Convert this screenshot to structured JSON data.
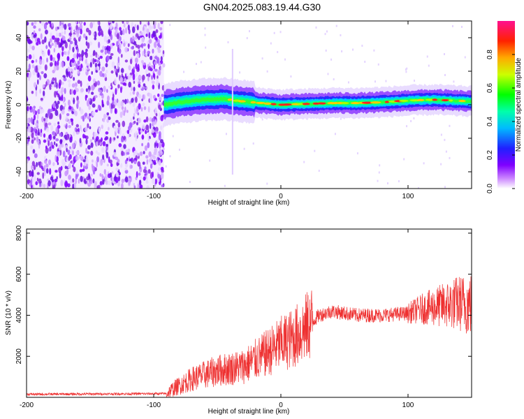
{
  "title": "GN04.2025.083.19.44.G30",
  "chart_data": [
    {
      "type": "heatmap",
      "xlabel": "Height of straight line (km)",
      "ylabel": "Frequency (Hz)",
      "xlim": [
        -200,
        150
      ],
      "ylim": [
        -50,
        50
      ],
      "xticks": [
        -200,
        -100,
        0,
        100
      ],
      "yticks": [
        -40,
        -20,
        0,
        20,
        40
      ],
      "noise_region_x": [
        -200,
        -92
      ],
      "ridge": [
        [
          -92,
          0
        ],
        [
          -80,
          1.5
        ],
        [
          -60,
          3
        ],
        [
          -45,
          3.5
        ],
        [
          -30,
          2
        ],
        [
          -15,
          1
        ],
        [
          0,
          0
        ],
        [
          20,
          0.5
        ],
        [
          40,
          1
        ],
        [
          60,
          1
        ],
        [
          80,
          1.5
        ],
        [
          100,
          2.5
        ],
        [
          120,
          3
        ],
        [
          150,
          2
        ]
      ],
      "colorbar": {
        "label": "Normalized spectral amplitude",
        "range": [
          0,
          1
        ],
        "ticks": [
          "0.0",
          "0.2",
          "0.4",
          "0.6",
          "0.8"
        ]
      }
    },
    {
      "type": "line",
      "xlabel": "Height of straight line (km)",
      "ylabel": "SNR (10 * v/v)",
      "xlim": [
        -200,
        150
      ],
      "ylim": [
        0,
        8200
      ],
      "xticks": [
        -200,
        -100,
        0,
        100
      ],
      "yticks": [
        2000,
        4000,
        6000,
        8000
      ],
      "series_color": "#ee3030",
      "envelope": [
        [
          -200,
          150
        ],
        [
          -90,
          180
        ],
        [
          -85,
          400
        ],
        [
          -70,
          900
        ],
        [
          -50,
          1300
        ],
        [
          -30,
          1500
        ],
        [
          -15,
          2000
        ],
        [
          0,
          2600
        ],
        [
          10,
          2900
        ],
        [
          20,
          3400
        ],
        [
          30,
          4000
        ],
        [
          40,
          4200
        ],
        [
          60,
          4000
        ],
        [
          80,
          4000
        ],
        [
          100,
          4100
        ],
        [
          110,
          4300
        ],
        [
          130,
          4500
        ],
        [
          140,
          4600
        ],
        [
          150,
          4500
        ]
      ]
    }
  ]
}
